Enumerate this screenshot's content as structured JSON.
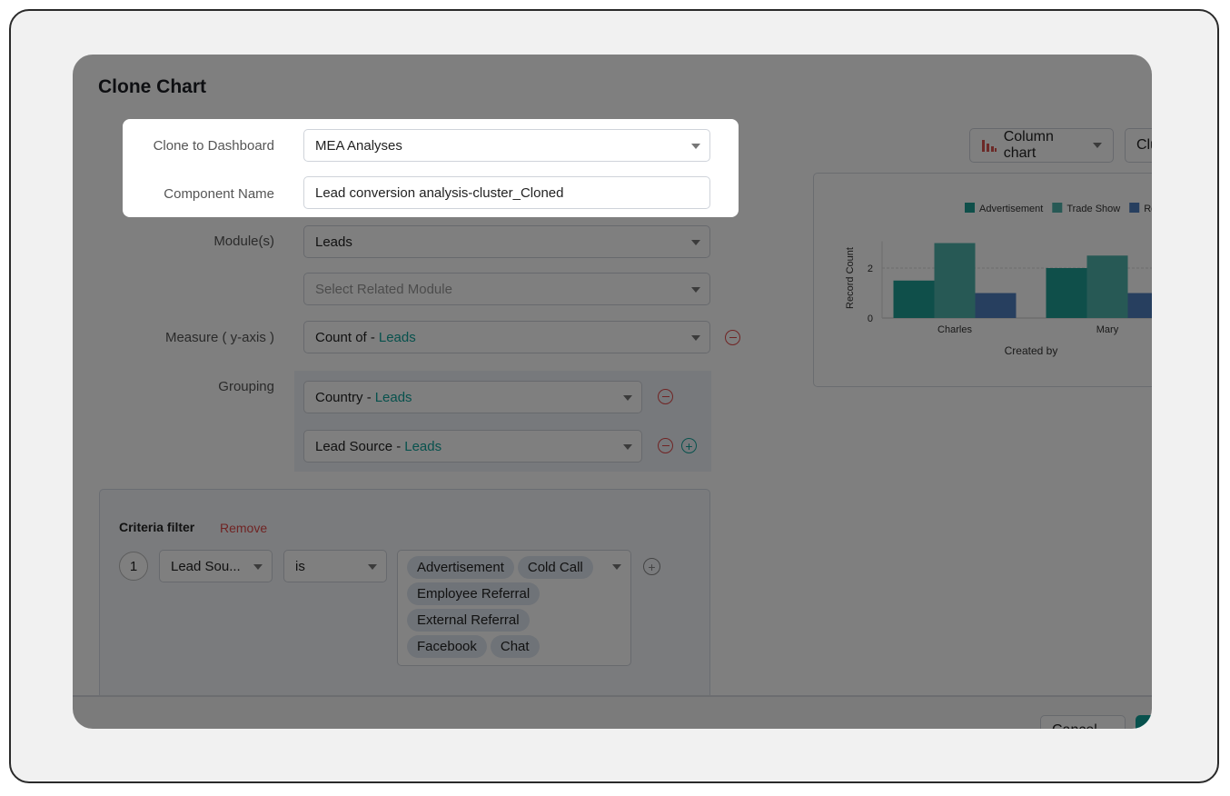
{
  "dialog": {
    "title": "Clone Chart"
  },
  "form": {
    "clone_to_dashboard": {
      "label": "Clone to Dashboard",
      "value": "MEA Analyses"
    },
    "component_name": {
      "label": "Component Name",
      "value": "Lead conversion analysis-cluster_Cloned"
    },
    "modules": {
      "label": "Module(s)",
      "value": "Leads"
    },
    "related_module": {
      "placeholder": "Select Related Module"
    },
    "measure": {
      "label": "Measure ( y-axis )",
      "prefix": "Count of -",
      "module": "Leads"
    },
    "grouping": {
      "label": "Grouping",
      "items": [
        {
          "prefix": "Country -",
          "module": "Leads"
        },
        {
          "prefix": "Lead Source -",
          "module": "Leads"
        }
      ]
    }
  },
  "criteria": {
    "title": "Criteria filter",
    "remove_label": "Remove",
    "row_number": "1",
    "field": "Lead Sou...",
    "operator": "is",
    "values": [
      "Advertisement",
      "Cold Call",
      "Employee Referral",
      "External Referral",
      "Facebook",
      "Chat"
    ]
  },
  "toolbar": {
    "chart_type": "Column chart",
    "second_button": "Clu"
  },
  "footer": {
    "cancel_label": "Cancel"
  },
  "colors": {
    "overlay": "#808080",
    "accent": "#10a39b",
    "danger": "#e04848"
  },
  "chart_data": {
    "type": "bar",
    "categories": [
      "Charles",
      "Mary"
    ],
    "series": [
      {
        "name": "Advertisement",
        "values": [
          1.5,
          2
        ],
        "color": "#1e9e95"
      },
      {
        "name": "Trade Show",
        "values": [
          3,
          2.5
        ],
        "color": "#4fb3aa"
      },
      {
        "name": "Re",
        "values": [
          1,
          1
        ],
        "color": "#4f7fbf"
      }
    ],
    "xlabel": "Created by",
    "ylabel": "Record Count",
    "yticks": [
      "0",
      "2"
    ],
    "ylim": [
      0,
      3
    ],
    "legend": "top",
    "grid": true
  }
}
